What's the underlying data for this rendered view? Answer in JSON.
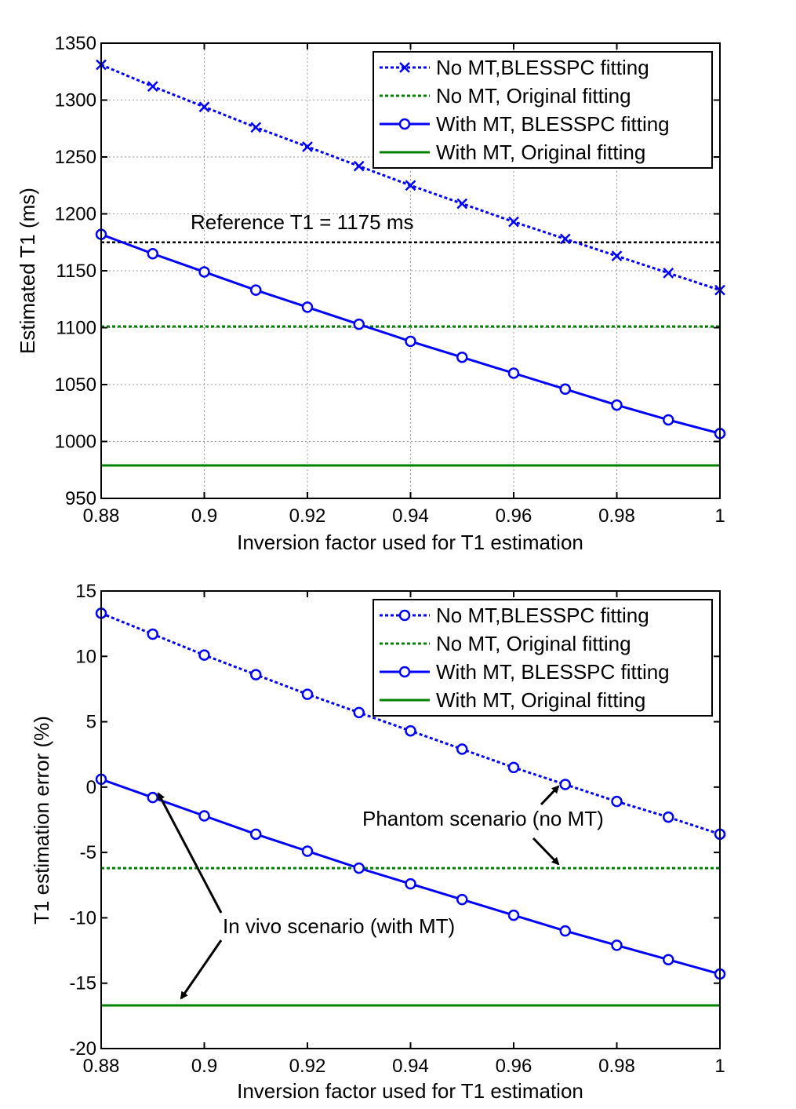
{
  "chart_data": [
    {
      "type": "line",
      "xlabel": "Inversion factor used for T1 estimation",
      "ylabel": "Estimated T1 (ms)",
      "xlim": [
        0.88,
        1.0
      ],
      "ylim": [
        950,
        1350
      ],
      "x_ticks": [
        0.88,
        0.9,
        0.92,
        0.94,
        0.96,
        0.98,
        1
      ],
      "x_tick_labels": [
        "0.88",
        "0.9",
        "0.92",
        "0.94",
        "0.96",
        "0.98",
        "1"
      ],
      "y_ticks": [
        950,
        1000,
        1050,
        1100,
        1150,
        1200,
        1250,
        1300,
        1350
      ],
      "y_tick_labels": [
        "950",
        "1000",
        "1050",
        "1100",
        "1150",
        "1200",
        "1250",
        "1300",
        "1350"
      ],
      "grid": true,
      "legend_position": "top-right",
      "x": [
        0.88,
        0.89,
        0.9,
        0.91,
        0.92,
        0.93,
        0.94,
        0.95,
        0.96,
        0.97,
        0.98,
        0.99,
        1.0
      ],
      "series": [
        {
          "name": "No MT,BLESSPC fitting",
          "color": "#0000ff",
          "style": "dotted",
          "marker": "x",
          "values": [
            1331,
            1312,
            1294,
            1276,
            1259,
            1242,
            1225,
            1209,
            1193,
            1178,
            1163,
            1148,
            1133
          ]
        },
        {
          "name": "No MT, Original fitting",
          "color": "#008000",
          "style": "dotted",
          "marker": "none",
          "values": [
            1101,
            1101,
            1101,
            1101,
            1101,
            1101,
            1101,
            1101,
            1101,
            1101,
            1101,
            1101,
            1101
          ]
        },
        {
          "name": "With MT, BLESSPC fitting",
          "color": "#0000ff",
          "style": "solid",
          "marker": "o",
          "values": [
            1182,
            1165,
            1149,
            1133,
            1118,
            1103,
            1088,
            1074,
            1060,
            1046,
            1032,
            1019,
            1007
          ]
        },
        {
          "name": "With MT, Original fitting",
          "color": "#008000",
          "style": "solid",
          "marker": "none",
          "values": [
            979,
            979,
            979,
            979,
            979,
            979,
            979,
            979,
            979,
            979,
            979,
            979,
            979
          ]
        }
      ],
      "reference": {
        "value": 1175,
        "label": "Reference T1 = 1175 ms",
        "color": "#000000"
      }
    },
    {
      "type": "line",
      "xlabel": "Inversion factor used for T1 estimation",
      "ylabel": "T1 estimation error (%)",
      "xlim": [
        0.88,
        1.0
      ],
      "ylim": [
        -20,
        15
      ],
      "x_ticks": [
        0.88,
        0.9,
        0.92,
        0.94,
        0.96,
        0.98,
        1
      ],
      "x_tick_labels": [
        "0.88",
        "0.9",
        "0.92",
        "0.94",
        "0.96",
        "0.98",
        "1"
      ],
      "y_ticks": [
        -20,
        -15,
        -10,
        -5,
        0,
        5,
        10,
        15
      ],
      "y_tick_labels": [
        "-20",
        "-15",
        "-10",
        "-5",
        "0",
        "5",
        "10",
        "15"
      ],
      "grid": false,
      "legend_position": "top-right",
      "x": [
        0.88,
        0.89,
        0.9,
        0.91,
        0.92,
        0.93,
        0.94,
        0.95,
        0.96,
        0.97,
        0.98,
        0.99,
        1.0
      ],
      "series": [
        {
          "name": "No MT,BLESSPC fitting",
          "color": "#0000ff",
          "style": "dotted",
          "marker": "o",
          "values": [
            13.3,
            11.7,
            10.1,
            8.6,
            7.1,
            5.7,
            4.3,
            2.9,
            1.5,
            0.2,
            -1.1,
            -2.3,
            -3.6
          ]
        },
        {
          "name": "No MT, Original fitting",
          "color": "#008000",
          "style": "dotted",
          "marker": "none",
          "values": [
            -6.2,
            -6.2,
            -6.2,
            -6.2,
            -6.2,
            -6.2,
            -6.2,
            -6.2,
            -6.2,
            -6.2,
            -6.2,
            -6.2,
            -6.2
          ]
        },
        {
          "name": "With MT, BLESSPC fitting",
          "color": "#0000ff",
          "style": "solid",
          "marker": "o",
          "values": [
            0.6,
            -0.8,
            -2.2,
            -3.6,
            -4.9,
            -6.2,
            -7.4,
            -8.6,
            -9.8,
            -11.0,
            -12.1,
            -13.2,
            -14.3
          ]
        },
        {
          "name": "With MT, Original fitting",
          "color": "#008000",
          "style": "solid",
          "marker": "none",
          "values": [
            -16.7,
            -16.7,
            -16.7,
            -16.7,
            -16.7,
            -16.7,
            -16.7,
            -16.7,
            -16.7,
            -16.7,
            -16.7,
            -16.7,
            -16.7
          ]
        }
      ],
      "annotations": [
        {
          "text": "Phantom scenario (no MT)"
        },
        {
          "text": "In vivo scenario (with MT)"
        }
      ]
    }
  ]
}
